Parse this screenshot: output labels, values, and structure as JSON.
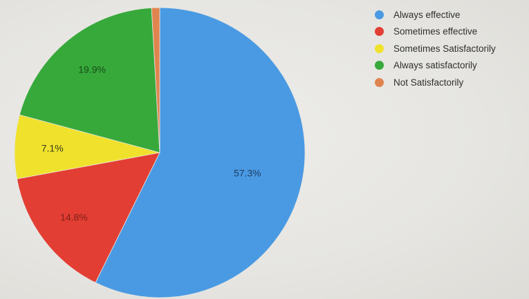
{
  "chart_data": {
    "type": "pie",
    "title": "",
    "slices": [
      {
        "label": "Always effective",
        "value": 57.3,
        "display": "57.3%",
        "color": "#4a9ae3"
      },
      {
        "label": "Sometimes effective",
        "value": 14.8,
        "display": "14.8%",
        "color": "#e33e33"
      },
      {
        "label": "Sometimes Satisfactorily",
        "value": 7.1,
        "display": "7.1%",
        "color": "#f0e22c"
      },
      {
        "label": "Always satisfactorily",
        "value": 19.9,
        "display": "19.9%",
        "color": "#37a93b"
      },
      {
        "label": "Not Satisfactorily",
        "value": 0.9,
        "display": "",
        "color": "#e0844f"
      }
    ],
    "start_angle_deg": 0,
    "direction": "clockwise",
    "legend_position": "right",
    "label_colors": {
      "Always effective": "#1d3f66",
      "Sometimes effective": "#7d1f18",
      "Sometimes Satisfactorily": "#3a3a1a",
      "Always satisfactorily": "#174d18"
    }
  }
}
